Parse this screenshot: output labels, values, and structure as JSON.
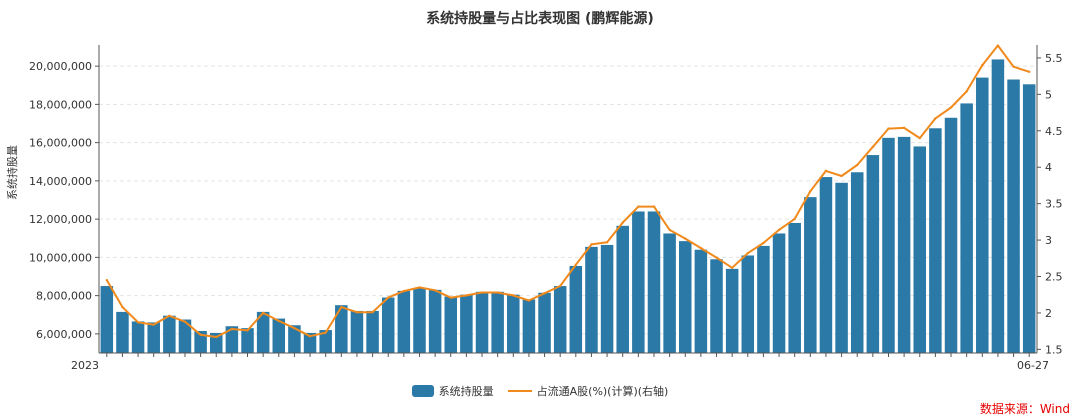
{
  "chart_data": {
    "type": "bar",
    "title": "系统持股量与占比表现图 (鹏辉能源)",
    "ylabel": "系统持股量",
    "y2label": "",
    "ylim": [
      5000000,
      21000000
    ],
    "yticks": [
      6000000,
      8000000,
      10000000,
      12000000,
      14000000,
      16000000,
      18000000,
      20000000
    ],
    "ytick_labels": [
      "6,000,000",
      "8,000,000",
      "10,000,000",
      "12,000,000",
      "14,000,000",
      "16,000,000",
      "18,000,000",
      "20,000,000"
    ],
    "y2lim": [
      1.45,
      5.65
    ],
    "y2ticks": [
      1.5,
      2,
      2.5,
      3,
      3.5,
      4,
      4.5,
      5,
      5.5
    ],
    "y2tick_labels": [
      "1.5",
      "2",
      "2.5",
      "3",
      "3.5",
      "4",
      "4.5",
      "5",
      "5.5"
    ],
    "x_first_label": "2023",
    "x_last_label": "06-27",
    "grid": true,
    "legend_position": "bottom",
    "series": [
      {
        "name": "系统持股量",
        "type": "bar",
        "color": "#2a79a6",
        "values": [
          8500000,
          7150000,
          6650000,
          6600000,
          6950000,
          6750000,
          6150000,
          6050000,
          6400000,
          6300000,
          7150000,
          6800000,
          6450000,
          6050000,
          6200000,
          7500000,
          7200000,
          7200000,
          7900000,
          8250000,
          8400000,
          8300000,
          7950000,
          8050000,
          8200000,
          8200000,
          8050000,
          7800000,
          8150000,
          8500000,
          9550000,
          10550000,
          10650000,
          11650000,
          12400000,
          12400000,
          11250000,
          10850000,
          10400000,
          9900000,
          9400000,
          10100000,
          10600000,
          11250000,
          11800000,
          13150000,
          14200000,
          13900000,
          14450000,
          15350000,
          16250000,
          16300000,
          15800000,
          16750000,
          17300000,
          18050000,
          19400000,
          20350000,
          19300000,
          19050000
        ]
      },
      {
        "name": "占流通A股(%)(计算)(右轴)",
        "type": "line",
        "color": "#f08a1c",
        "values": [
          2.45,
          2.08,
          1.87,
          1.84,
          1.96,
          1.88,
          1.7,
          1.67,
          1.78,
          1.76,
          2.0,
          1.89,
          1.79,
          1.68,
          1.73,
          2.08,
          2.01,
          2.01,
          2.21,
          2.3,
          2.35,
          2.31,
          2.21,
          2.24,
          2.28,
          2.28,
          2.24,
          2.17,
          2.27,
          2.37,
          2.66,
          2.94,
          2.97,
          3.24,
          3.46,
          3.46,
          3.14,
          3.02,
          2.89,
          2.76,
          2.62,
          2.82,
          2.96,
          3.14,
          3.29,
          3.67,
          3.95,
          3.88,
          4.03,
          4.28,
          4.53,
          4.54,
          4.4,
          4.67,
          4.82,
          5.04,
          5.4,
          5.67,
          5.38,
          5.31
        ]
      }
    ]
  },
  "legend": {
    "bar_label": "系统持股量",
    "line_label": "占流通A股(%)(计算)(右轴)"
  },
  "footer": {
    "source": "数据来源：Wind"
  }
}
